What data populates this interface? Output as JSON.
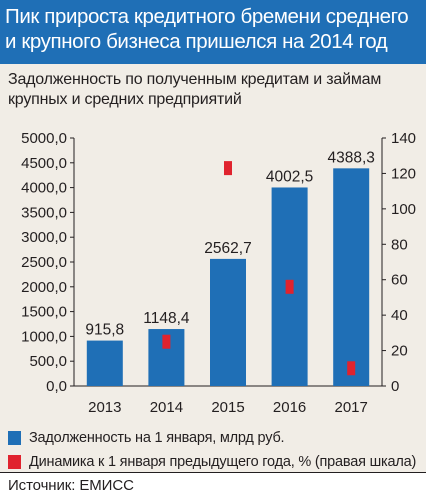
{
  "title": "Пик прироста кредитного бремени среднего и крупного бизнеса пришелся на 2014 год",
  "subtitle": "Задолженность по полученным кредитам и займам крупных и средних предприятий",
  "source": "Источник: ЕМИСС",
  "colors": {
    "header": "#1f6fb6",
    "panel": "#f1ede6",
    "bars": "#1f6fb6",
    "markers": "#e0232e"
  },
  "chart_data": {
    "type": "bar",
    "categories": [
      "2013",
      "2014",
      "2015",
      "2016",
      "2017"
    ],
    "series": [
      {
        "name": "Задолженность на 1 января, млрд руб.",
        "type": "bar",
        "axis": "left",
        "values": [
          915.8,
          1148.4,
          2562.7,
          4002.5,
          4388.3
        ],
        "labels": [
          "915,8",
          "1148,4",
          "2562,7",
          "4002,5",
          "4388,3"
        ]
      },
      {
        "name": "Динамика к 1 января предыдущего года, % (правая шкала)",
        "type": "marker",
        "axis": "right",
        "values": [
          null,
          25,
          123,
          56,
          10
        ]
      }
    ],
    "left_axis": {
      "min": 0,
      "max": 5000,
      "ticks": [
        "0,0",
        "500,0",
        "1000,0",
        "1500,0",
        "2000,0",
        "2500,0",
        "3000,0",
        "3500,0",
        "4000,0",
        "4500,0",
        "5000,0"
      ]
    },
    "right_axis": {
      "min": 0,
      "max": 140,
      "ticks": [
        "0",
        "20",
        "40",
        "60",
        "80",
        "100",
        "120",
        "140"
      ]
    },
    "grid": false,
    "legend_position": "bottom"
  }
}
